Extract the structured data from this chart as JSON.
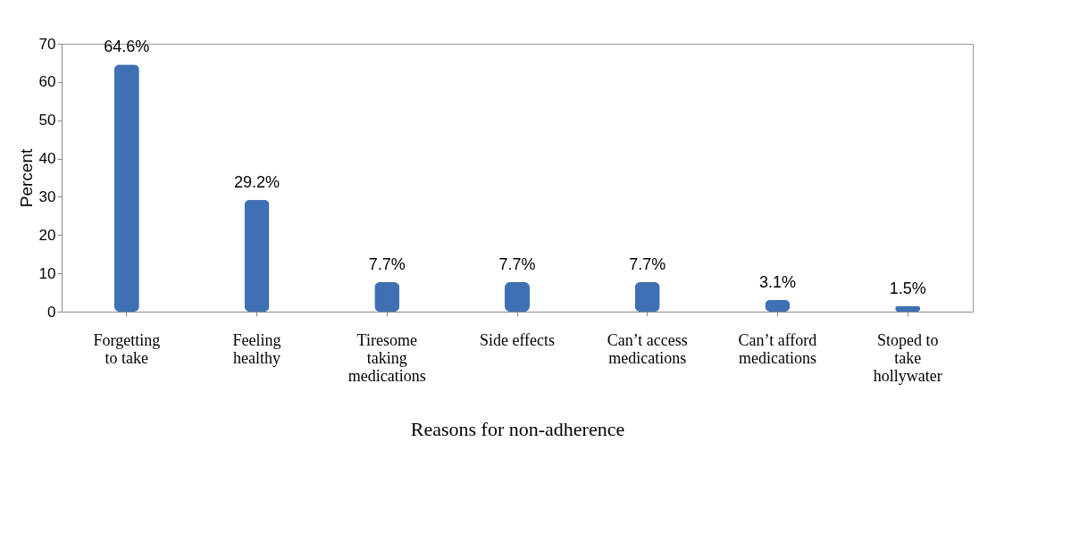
{
  "chart_data": {
    "type": "bar",
    "xlabel": "Reasons for non-adherence",
    "ylabel": "Percent",
    "categories": [
      "Forgetting to take",
      "Feeling healthy",
      "Tiresome taking medications",
      "Side effects",
      "Can’t access medications",
      "Can’t afford medications",
      "Stoped to take hollywater"
    ],
    "values": [
      64.6,
      29.2,
      7.7,
      7.7,
      7.7,
      3.1,
      1.5
    ],
    "value_labels": [
      "64.6%",
      "29.2%",
      "7.7%",
      "7.7%",
      "7.7%",
      "3.1%",
      "1.5%"
    ],
    "color": "#3f70b3",
    "ylim": [
      0,
      70
    ],
    "yticks": [
      0,
      10,
      20,
      30,
      40,
      50,
      60,
      70
    ],
    "grid": false
  }
}
